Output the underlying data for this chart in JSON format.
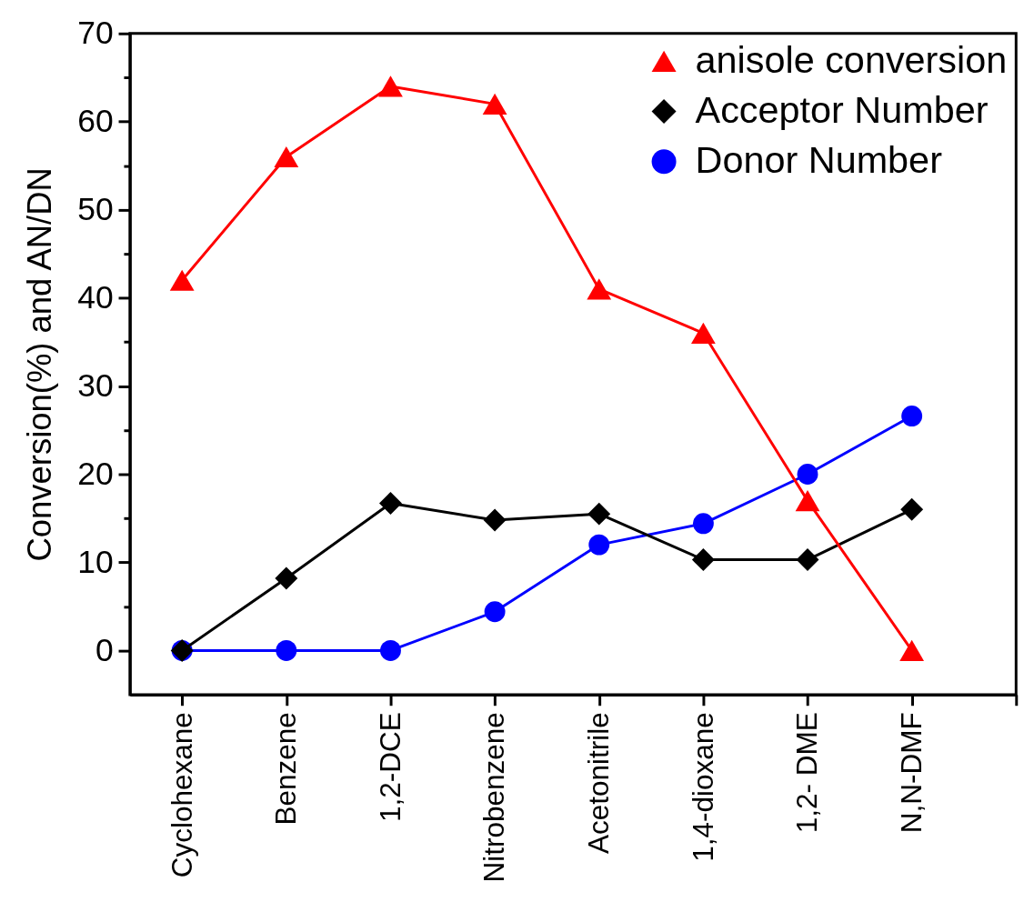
{
  "chart_data": {
    "type": "line",
    "ylabel": "Conversion(%) and AN/DN",
    "categories": [
      "Cyclohexane",
      "Benzene",
      "1,2-DCE",
      "Nitrobenzene",
      "Acetonitrile",
      "1,4-dioxane",
      "1,2- DME",
      "N,N-DMF"
    ],
    "series": [
      {
        "name": "anisole conversion",
        "color": "#ff0000",
        "marker": "triangle",
        "values": [
          42,
          56,
          64,
          62,
          41,
          36,
          17,
          0
        ]
      },
      {
        "name": "Acceptor Number",
        "color": "#000000",
        "marker": "diamond",
        "values": [
          0,
          8.2,
          16.7,
          14.8,
          15.5,
          10.3,
          10.3,
          16.0
        ]
      },
      {
        "name": "Donor Number",
        "color": "#0000ff",
        "marker": "circle",
        "values": [
          0,
          0,
          0,
          4.4,
          12,
          14.4,
          20,
          26.6
        ]
      }
    ],
    "ylim": [
      -5,
      70
    ],
    "yticks": [
      0,
      {
        "value": 5,
        "label": null
      },
      10,
      {
        "value": 15,
        "label": null
      },
      20,
      {
        "value": 25,
        "label": null
      },
      30,
      {
        "value": 35,
        "label": null
      },
      40,
      {
        "value": 45,
        "label": null
      },
      50,
      {
        "value": 55,
        "label": null
      },
      60,
      {
        "value": 65,
        "label": null
      },
      70
    ],
    "legend": "top right"
  }
}
